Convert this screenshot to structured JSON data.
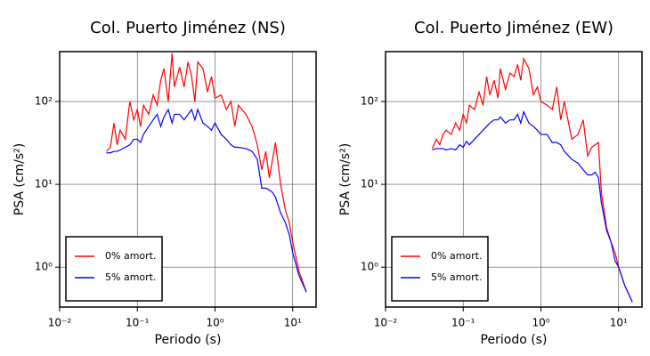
{
  "chart_data": [
    {
      "type": "line",
      "title": "Col. Puerto Jiménez (NS)",
      "x_label": "Periodo (s)",
      "y_label": "PSA (cm/s²)",
      "log_x": true,
      "log_y": true,
      "grid": true,
      "legend": "lower left",
      "xlim": [
        0.01,
        20
      ],
      "ylim": [
        0.33,
        400
      ],
      "xticks": [
        {
          "value": 0.01,
          "label": "10⁻²"
        },
        {
          "value": 0.1,
          "label": "10⁻¹"
        },
        {
          "value": 1,
          "label": "10⁰"
        },
        {
          "value": 10,
          "label": "10¹"
        }
      ],
      "yticks": [
        {
          "value": 1,
          "label": "10⁰"
        },
        {
          "value": 10,
          "label": "10¹"
        },
        {
          "value": 100,
          "label": "10²"
        }
      ],
      "x": [
        0.04,
        0.045,
        0.05,
        0.055,
        0.06,
        0.07,
        0.08,
        0.09,
        0.1,
        0.11,
        0.12,
        0.14,
        0.16,
        0.18,
        0.2,
        0.22,
        0.25,
        0.28,
        0.3,
        0.35,
        0.4,
        0.45,
        0.5,
        0.55,
        0.6,
        0.7,
        0.8,
        0.9,
        1.0,
        1.2,
        1.4,
        1.6,
        1.8,
        2.0,
        2.5,
        3.0,
        3.5,
        4.0,
        4.5,
        5.0,
        5.5,
        6.0,
        7.0,
        8.0,
        9.0,
        10,
        12,
        15
      ],
      "series": [
        {
          "name": "0% amort.",
          "color": "#ff0000",
          "values": [
            25,
            28,
            55,
            30,
            45,
            35,
            100,
            60,
            80,
            50,
            90,
            70,
            120,
            90,
            180,
            250,
            100,
            380,
            150,
            260,
            150,
            300,
            200,
            100,
            300,
            250,
            130,
            200,
            110,
            120,
            80,
            100,
            50,
            90,
            70,
            50,
            30,
            15,
            25,
            12,
            20,
            32,
            10,
            5,
            3.5,
            2,
            0.9,
            0.5
          ]
        },
        {
          "name": "5% amort.",
          "color": "#0000ff",
          "values": [
            24,
            24,
            25,
            25,
            26,
            28,
            30,
            35,
            35,
            32,
            40,
            50,
            60,
            70,
            50,
            65,
            80,
            55,
            70,
            70,
            60,
            70,
            80,
            60,
            80,
            55,
            50,
            45,
            55,
            40,
            35,
            30,
            28,
            28,
            27,
            25,
            20,
            9,
            9,
            8.5,
            8,
            7,
            4.5,
            3.5,
            2.5,
            1.5,
            0.8,
            0.5
          ]
        }
      ]
    },
    {
      "type": "line",
      "title": "Col. Puerto Jiménez (EW)",
      "x_label": "Periodo (s)",
      "y_label": "PSA (cm/s²)",
      "log_x": true,
      "log_y": true,
      "grid": true,
      "legend": "lower left",
      "xlim": [
        0.01,
        20
      ],
      "ylim": [
        0.33,
        400
      ],
      "xticks": [
        {
          "value": 0.01,
          "label": "10⁻²"
        },
        {
          "value": 0.1,
          "label": "10⁻¹"
        },
        {
          "value": 1,
          "label": "10⁰"
        },
        {
          "value": 10,
          "label": "10¹"
        }
      ],
      "yticks": [
        {
          "value": 1,
          "label": "10⁰"
        },
        {
          "value": 10,
          "label": "10¹"
        },
        {
          "value": 100,
          "label": "10²"
        }
      ],
      "x": [
        0.04,
        0.045,
        0.05,
        0.055,
        0.06,
        0.07,
        0.08,
        0.09,
        0.1,
        0.11,
        0.12,
        0.14,
        0.16,
        0.18,
        0.2,
        0.22,
        0.25,
        0.28,
        0.3,
        0.35,
        0.4,
        0.45,
        0.5,
        0.55,
        0.6,
        0.7,
        0.8,
        0.9,
        1.0,
        1.2,
        1.4,
        1.6,
        1.8,
        2.0,
        2.5,
        3.0,
        3.5,
        4.0,
        4.5,
        5.0,
        5.5,
        6.0,
        7.0,
        8.0,
        9.0,
        10,
        12,
        15
      ],
      "series": [
        {
          "name": "0% amort.",
          "color": "#ff0000",
          "values": [
            27,
            35,
            30,
            40,
            45,
            40,
            55,
            45,
            70,
            55,
            90,
            80,
            130,
            90,
            200,
            120,
            180,
            110,
            250,
            140,
            220,
            200,
            280,
            180,
            330,
            250,
            120,
            150,
            100,
            90,
            80,
            150,
            60,
            100,
            35,
            40,
            60,
            22,
            28,
            30,
            32,
            8,
            3,
            2,
            1.5,
            1,
            0.6,
            0.38
          ]
        },
        {
          "name": "5% amort.",
          "color": "#0000ff",
          "values": [
            26,
            27,
            27,
            27,
            26,
            27,
            26,
            30,
            28,
            33,
            30,
            35,
            40,
            45,
            50,
            55,
            60,
            60,
            65,
            55,
            60,
            60,
            70,
            55,
            75,
            55,
            50,
            45,
            40,
            40,
            32,
            32,
            30,
            25,
            20,
            18,
            15,
            13,
            13,
            14,
            12,
            6,
            2.8,
            2,
            1.2,
            1,
            0.6,
            0.38
          ]
        }
      ]
    }
  ]
}
